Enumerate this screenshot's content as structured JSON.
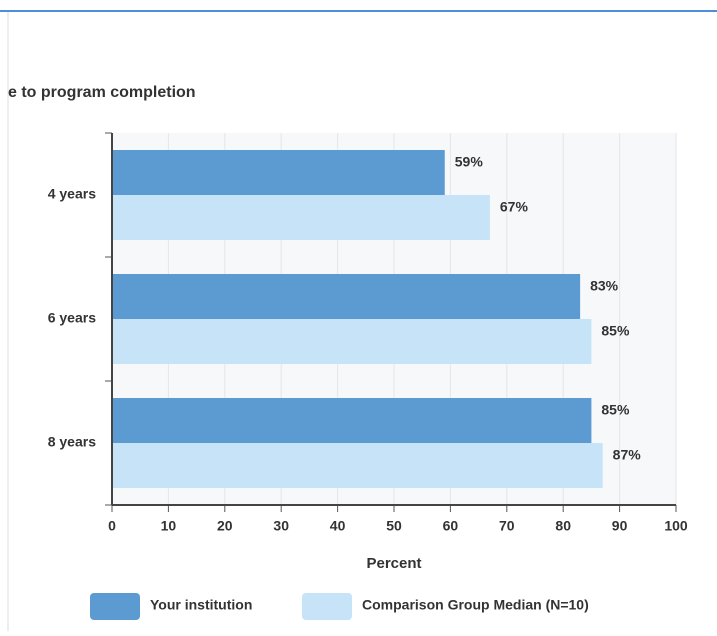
{
  "chart_data": {
    "type": "bar",
    "orientation": "horizontal",
    "title": "e to program completion",
    "categories": [
      "4 years",
      "6 years",
      "8 years"
    ],
    "series": [
      {
        "name": "Your institution",
        "color": "#5b9bd1",
        "values": [
          59,
          83,
          85
        ],
        "value_labels": [
          "59%",
          "83%",
          "85%"
        ]
      },
      {
        "name": "Comparison Group Median (N=10)",
        "color": "#c6e3f7",
        "values": [
          67,
          85,
          87
        ],
        "value_labels": [
          "67%",
          "85%",
          "87%"
        ]
      }
    ],
    "xlabel": "Percent",
    "xlim": [
      0,
      100
    ],
    "xticks": [
      0,
      10,
      20,
      30,
      40,
      50,
      60,
      70,
      80,
      90,
      100
    ],
    "grid": true,
    "legend": "bottom"
  }
}
